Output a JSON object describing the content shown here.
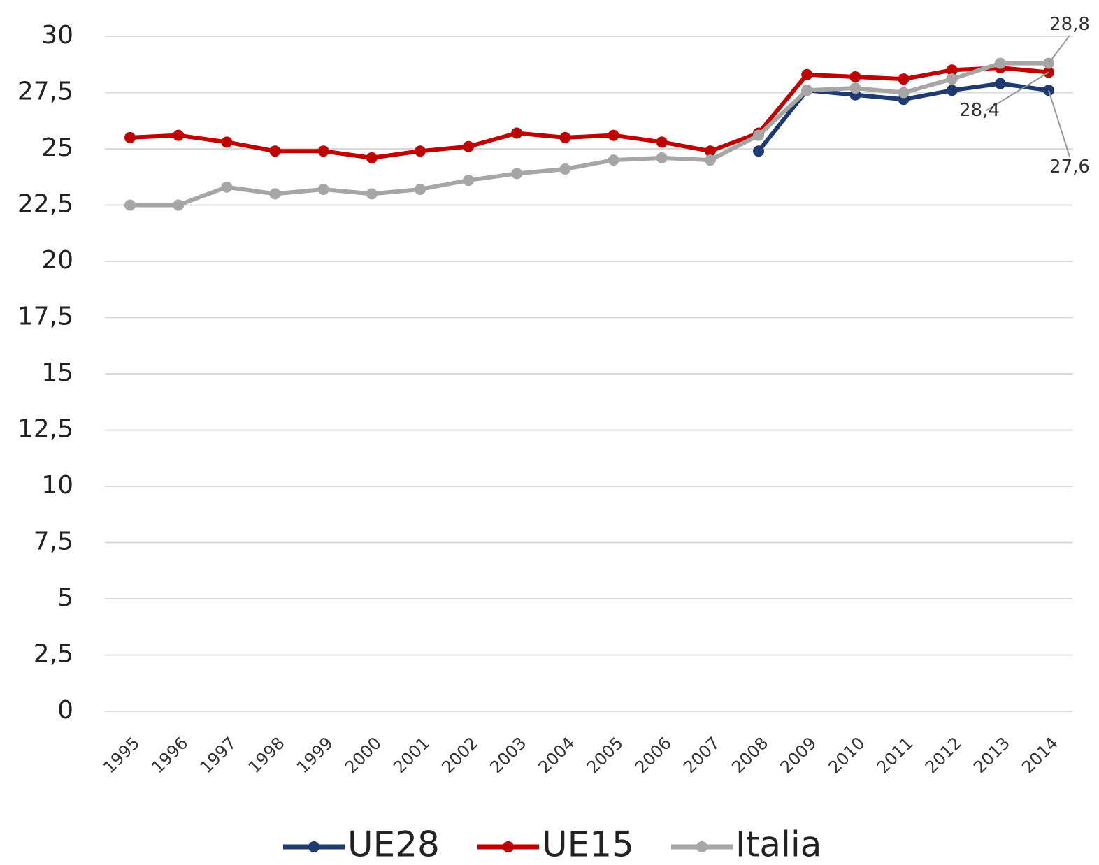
{
  "chart_data": {
    "type": "line",
    "categories": [
      "1995",
      "1996",
      "1997",
      "1998",
      "1999",
      "2000",
      "2001",
      "2002",
      "2003",
      "2004",
      "2005",
      "2006",
      "2007",
      "2008",
      "2009",
      "2010",
      "2011",
      "2012",
      "2013",
      "2014"
    ],
    "series": [
      {
        "name": "UE28",
        "color": "#1f3a70",
        "values": [
          null,
          null,
          null,
          null,
          null,
          null,
          null,
          null,
          null,
          null,
          null,
          null,
          null,
          24.9,
          27.6,
          27.4,
          27.2,
          27.6,
          27.9,
          27.6
        ],
        "value_labels": [
          null,
          null,
          null,
          null,
          null,
          null,
          null,
          null,
          null,
          null,
          null,
          null,
          null,
          null,
          null,
          null,
          null,
          null,
          null,
          "27,6"
        ]
      },
      {
        "name": "UE15",
        "color": "#c00000",
        "values": [
          25.5,
          25.6,
          25.3,
          24.9,
          24.9,
          24.6,
          24.9,
          25.1,
          25.7,
          25.5,
          25.6,
          25.3,
          24.9,
          25.7,
          28.3,
          28.2,
          28.1,
          28.5,
          28.6,
          28.4
        ],
        "value_labels": [
          null,
          null,
          null,
          null,
          null,
          null,
          null,
          null,
          null,
          null,
          null,
          null,
          null,
          null,
          null,
          null,
          null,
          null,
          null,
          "28,4"
        ]
      },
      {
        "name": "Italia",
        "color": "#a6a6a6",
        "values": [
          22.5,
          22.5,
          23.3,
          23.0,
          23.2,
          23.0,
          23.2,
          23.6,
          23.9,
          24.1,
          24.5,
          24.6,
          24.5,
          25.6,
          27.6,
          27.7,
          27.5,
          28.1,
          28.8,
          28.8
        ],
        "value_labels": [
          null,
          null,
          null,
          null,
          null,
          null,
          null,
          null,
          null,
          null,
          null,
          null,
          null,
          null,
          null,
          null,
          null,
          null,
          null,
          "28,8"
        ]
      }
    ],
    "ylim": [
      0,
      30
    ],
    "yticks": [
      0,
      {
        "value": 2.5,
        "label": "2,5"
      },
      5,
      {
        "value": 7.5,
        "label": "7,5"
      },
      10,
      {
        "value": 12.5,
        "label": "12,5"
      },
      15,
      {
        "value": 17.5,
        "label": "17,5"
      },
      20,
      {
        "value": 22.5,
        "label": "22,5"
      },
      25,
      {
        "value": 27.5,
        "label": "27,5"
      },
      30
    ],
    "grid": true,
    "legend": "bottom"
  }
}
